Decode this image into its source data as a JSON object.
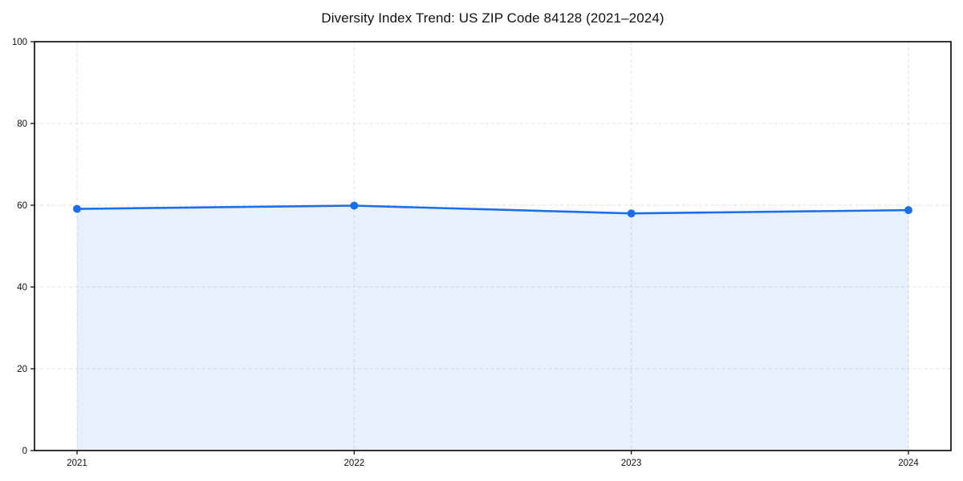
{
  "chart_data": {
    "type": "area",
    "title": "Diversity Index Trend: US ZIP Code 84128 (2021–2024)",
    "categories": [
      "2021",
      "2022",
      "2023",
      "2024"
    ],
    "series": [
      {
        "name": "Diversity Index",
        "values": [
          59.1,
          59.9,
          58.0,
          58.8
        ]
      }
    ],
    "xlabel": "",
    "ylabel": "",
    "ylim": [
      0,
      100
    ],
    "yticks": [
      0,
      20,
      40,
      60,
      80,
      100
    ],
    "grid": true,
    "grid_style": "dashed",
    "legend_position": "none",
    "marker": "circle",
    "colors": {
      "line": "#1a6ff0",
      "marker": "#1a6ff0",
      "fill": "#1a6ff0",
      "fill_opacity": 0.1,
      "grid": "#dedede",
      "spine": "#000000",
      "text": "#111111",
      "background": "#ffffff"
    }
  }
}
